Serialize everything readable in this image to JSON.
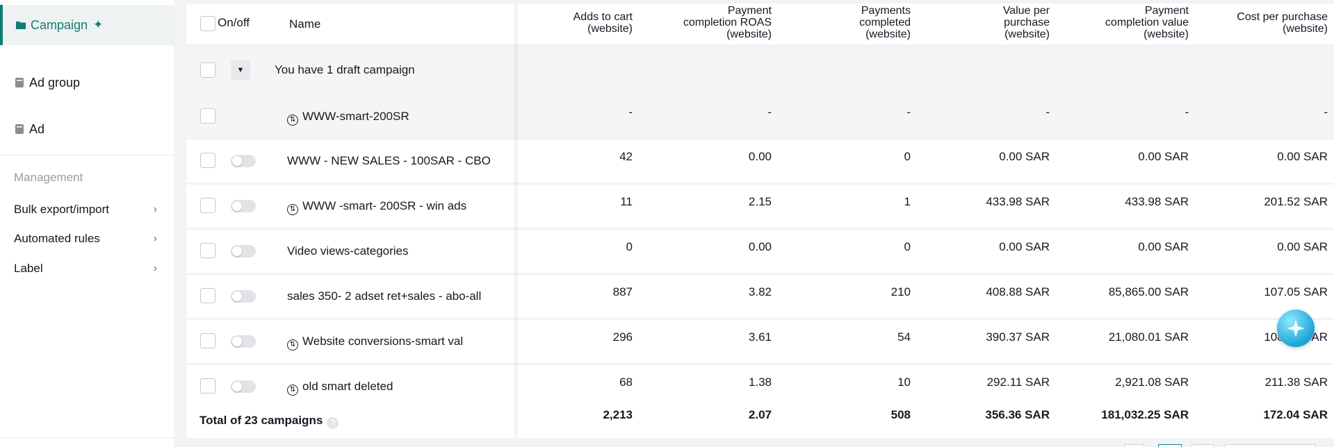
{
  "sidebar": {
    "levels": [
      {
        "label": "Campaign",
        "icon": "folder-icon",
        "active": true
      },
      {
        "label": "Ad group",
        "icon": "document-icon"
      },
      {
        "label": "Ad",
        "icon": "document-icon"
      }
    ],
    "management_label": "Management",
    "management_items": [
      {
        "label": "Bulk export/import"
      },
      {
        "label": "Automated rules"
      },
      {
        "label": "Label"
      }
    ]
  },
  "table": {
    "headers": {
      "onoff": "On/off",
      "name": "Name",
      "adds_to_cart_1": "Adds to cart",
      "adds_to_cart_2": "(website)",
      "roas_1": "Payment",
      "roas_2": "completion ROAS",
      "roas_3": "(website)",
      "payments_1": "Payments",
      "payments_2": "completed",
      "payments_3": "(website)",
      "vpp_1": "Value per",
      "vpp_2": "purchase",
      "vpp_3": "(website)",
      "pcv_1": "Payment",
      "pcv_2": "completion value",
      "pcv_3": "(website)",
      "cpp_1": "Cost per purchase",
      "cpp_2": "(website)"
    },
    "draft_row": {
      "label": "You have 1 draft campaign"
    },
    "draft_child": {
      "name": "WWW-smart-200SR",
      "adds": "-",
      "roas": "-",
      "payments": "-",
      "vpp": "-",
      "pcv": "-",
      "cpp": "-"
    },
    "rows": [
      {
        "name": "WWW - NEW SALES - 100SAR - CBO",
        "smart": false,
        "adds": "42",
        "roas": "0.00",
        "payments": "0",
        "vpp": "0.00 SAR",
        "pcv": "0.00 SAR",
        "cpp": "0.00 SAR"
      },
      {
        "name": "WWW -smart- 200SR - win ads",
        "smart": true,
        "adds": "11",
        "roas": "2.15",
        "payments": "1",
        "vpp": "433.98 SAR",
        "pcv": "433.98 SAR",
        "cpp": "201.52 SAR"
      },
      {
        "name": "Video views-categories",
        "smart": false,
        "adds": "0",
        "roas": "0.00",
        "payments": "0",
        "vpp": "0.00 SAR",
        "pcv": "0.00 SAR",
        "cpp": "0.00 SAR"
      },
      {
        "name": "sales 350- 2 adset ret+sales - abo-all",
        "smart": false,
        "adds": "887",
        "roas": "3.82",
        "payments": "210",
        "vpp": "408.88 SAR",
        "pcv": "85,865.00 SAR",
        "cpp": "107.05 SAR"
      },
      {
        "name": "Website conversions-smart val",
        "smart": true,
        "adds": "296",
        "roas": "3.61",
        "payments": "54",
        "vpp": "390.37 SAR",
        "pcv": "21,080.01 SAR",
        "cpp": "108.__ SAR"
      },
      {
        "name": "old smart deleted",
        "smart": true,
        "adds": "68",
        "roas": "1.38",
        "payments": "10",
        "vpp": "292.11 SAR",
        "pcv": "2,921.08 SAR",
        "cpp": "211.38 SAR"
      }
    ],
    "total": {
      "label": "Total of 23 campaigns",
      "adds": "2,213",
      "roas": "2.07",
      "payments": "508",
      "vpp": "356.36 SAR",
      "pcv": "181,032.25 SAR",
      "cpp": "172.04 SAR"
    }
  },
  "colors": {
    "accent": "#127c74",
    "assistant": "#1aa6d6"
  }
}
